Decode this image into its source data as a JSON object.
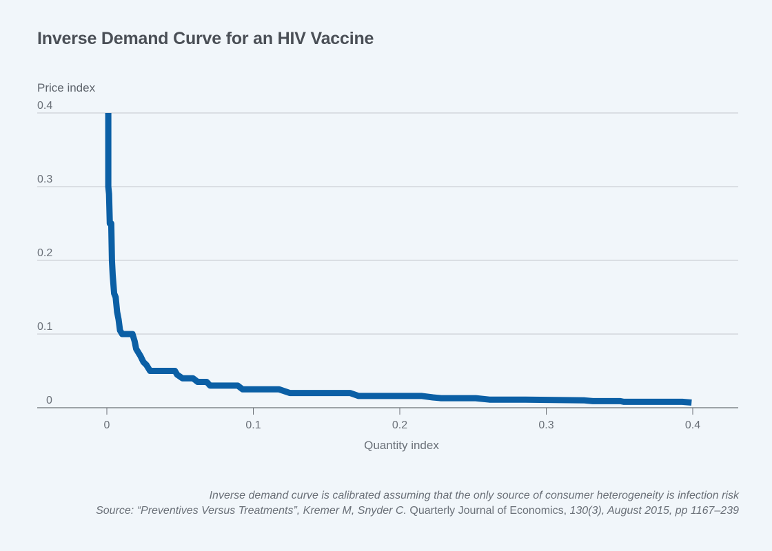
{
  "title": "Inverse Demand Curve for an HIV Vaccine",
  "notes": {
    "line1": "Inverse demand curve is calibrated assuming that the only source of consumer heterogeneity is infection risk",
    "source_prefix": "Source: “Preventives Versus Treatments”, Kremer M, Snyder C.",
    "source_journal": " Quarterly Journal of Economics,",
    "source_suffix": " 130(3), August 2015, pp 1167–239"
  },
  "colors": {
    "line": "#0b5fa5",
    "grid": "#c3c7cc",
    "axis": "#6a6f75",
    "background": "#f1f6fa"
  },
  "chart_data": {
    "type": "line",
    "title": "Inverse Demand Curve for an HIV Vaccine",
    "xlabel": "Quantity index",
    "ylabel": "Price index",
    "xlim": [
      -0.035,
      0.43
    ],
    "ylim": [
      0,
      0.4
    ],
    "xticks": [
      0,
      0.1,
      0.2,
      0.3,
      0.4
    ],
    "xtick_labels": [
      "0",
      "0.1",
      "0.2",
      "0.3",
      "0.4"
    ],
    "yticks": [
      0,
      0.1,
      0.2,
      0.3,
      0.4
    ],
    "ytick_labels": [
      "0",
      "0.1",
      "0.2",
      "0.3",
      "0.4"
    ],
    "grid": "horizontal",
    "series": [
      {
        "name": "Inverse demand",
        "x": [
          0.001,
          0.001,
          0.0015,
          0.002,
          0.003,
          0.0035,
          0.004,
          0.005,
          0.006,
          0.007,
          0.008,
          0.009,
          0.0105,
          0.0175,
          0.019,
          0.02,
          0.0215,
          0.023,
          0.025,
          0.027,
          0.0295,
          0.0295,
          0.0465,
          0.048,
          0.0516,
          0.0588,
          0.062,
          0.0682,
          0.0705,
          0.0894,
          0.0927,
          0.1176,
          0.125,
          0.1661,
          0.1718,
          0.2151,
          0.2226,
          0.2282,
          0.2518,
          0.2612,
          0.2847,
          0.3261,
          0.3318,
          0.3506,
          0.3529,
          0.3929,
          0.3992
        ],
        "y": [
          0.4,
          0.3,
          0.29,
          0.25,
          0.25,
          0.2,
          0.18,
          0.155,
          0.15,
          0.13,
          0.12,
          0.105,
          0.1,
          0.1,
          0.09,
          0.08,
          0.075,
          0.07,
          0.062,
          0.058,
          0.05,
          0.05,
          0.05,
          0.045,
          0.04,
          0.04,
          0.035,
          0.035,
          0.03,
          0.03,
          0.025,
          0.025,
          0.02,
          0.02,
          0.016,
          0.016,
          0.014,
          0.013,
          0.013,
          0.011,
          0.011,
          0.01,
          0.009,
          0.009,
          0.008,
          0.008,
          0.007
        ]
      }
    ]
  }
}
